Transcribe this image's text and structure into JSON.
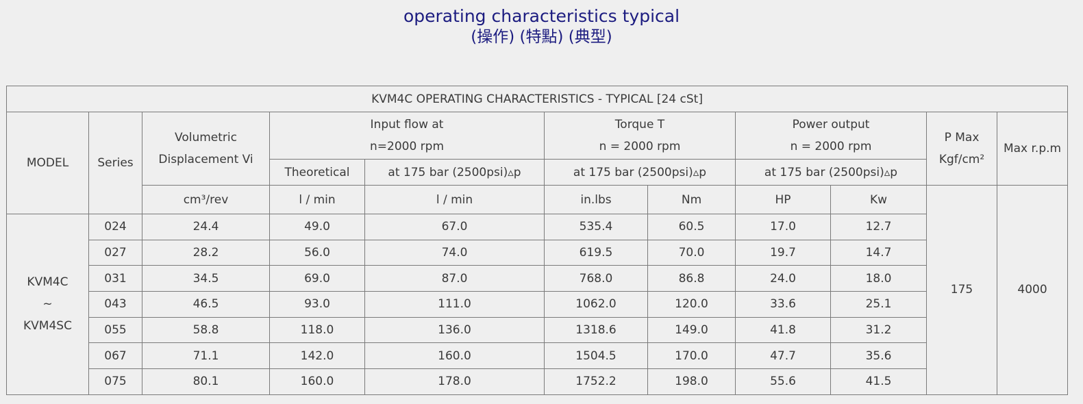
{
  "header": {
    "title": "operating characteristics typical",
    "subtitle": "(操作) (特點) (典型)"
  },
  "table": {
    "caption": "KVM4C OPERATING CHARACTERISTICS - TYPICAL [24 cSt]",
    "head": {
      "model": "MODEL",
      "series": "Series",
      "displacement": [
        "Volumetric",
        "Displacement Vi"
      ],
      "input_flow": [
        "Input flow at",
        "n=2000 rpm"
      ],
      "torque": [
        "Torque T",
        "n = 2000 rpm"
      ],
      "power": [
        "Power output",
        "n = 2000 rpm"
      ],
      "p_max": [
        "P Max",
        "Kgf/cm²"
      ],
      "max_rpm": "Max r.p.m",
      "conditions": [
        "Theoretical",
        "at 175 bar (2500psi)▵p",
        "at 175 bar (2500psi)▵p",
        "at 175 bar (2500psi)▵p"
      ],
      "units": [
        "cm³/rev",
        "l / min",
        "l / min",
        "in.lbs",
        "Nm",
        "HP",
        "Kw"
      ]
    },
    "model": [
      "KVM4C",
      "~",
      "KVM4SC"
    ],
    "p_max": "175",
    "max_rpm": "4000",
    "rows": [
      [
        "024",
        "24.4",
        "49.0",
        "67.0",
        "535.4",
        "60.5",
        "17.0",
        "12.7"
      ],
      [
        "027",
        "28.2",
        "56.0",
        "74.0",
        "619.5",
        "70.0",
        "19.7",
        "14.7"
      ],
      [
        "031",
        "34.5",
        "69.0",
        "87.0",
        "768.0",
        "86.8",
        "24.0",
        "18.0"
      ],
      [
        "043",
        "46.5",
        "93.0",
        "111.0",
        "1062.0",
        "120.0",
        "33.6",
        "25.1"
      ],
      [
        "055",
        "58.8",
        "118.0",
        "136.0",
        "1318.6",
        "149.0",
        "41.8",
        "31.2"
      ],
      [
        "067",
        "71.1",
        "142.0",
        "160.0",
        "1504.5",
        "170.0",
        "47.7",
        "35.6"
      ],
      [
        "075",
        "80.1",
        "160.0",
        "178.0",
        "1752.2",
        "198.0",
        "55.6",
        "41.5"
      ]
    ]
  }
}
